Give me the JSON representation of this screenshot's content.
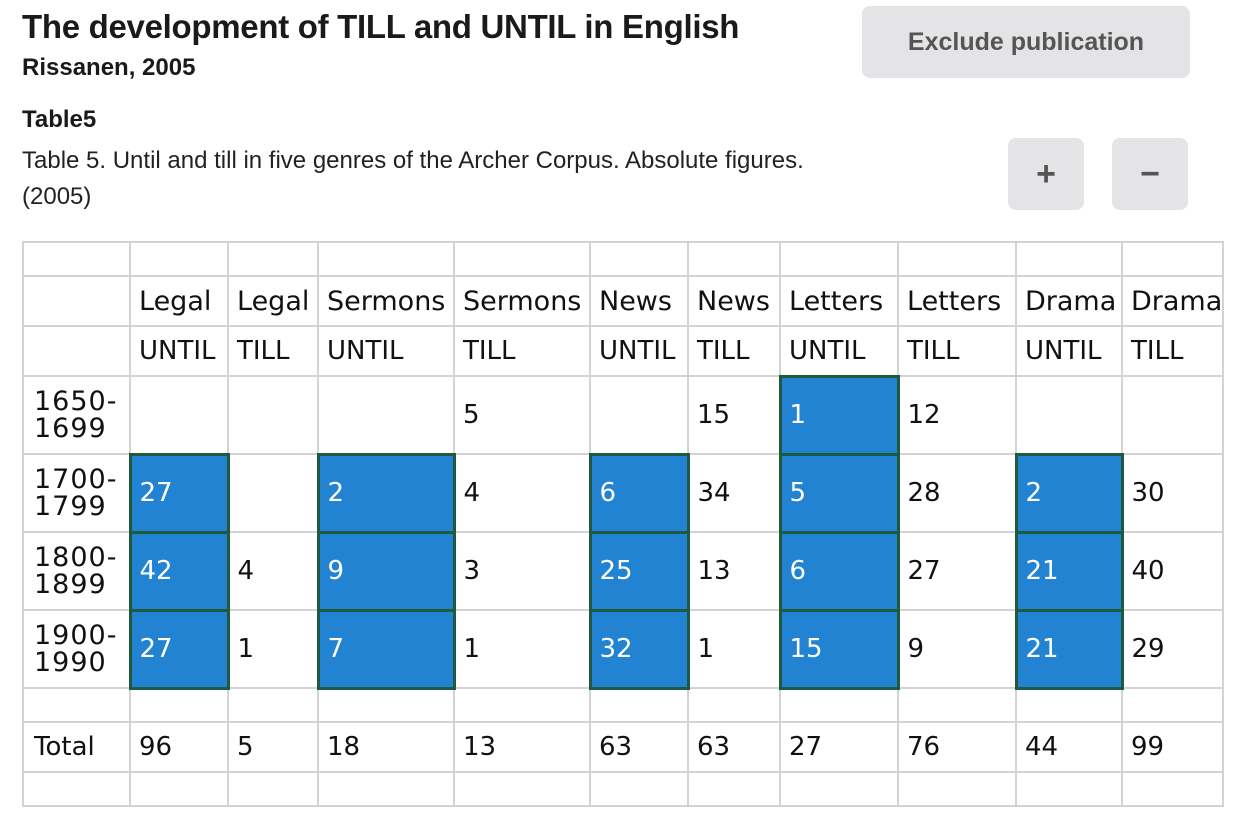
{
  "page": {
    "title": "The development of TILL and UNTIL in English",
    "subtitle": "Rissanen, 2005",
    "exclude_button": "Exclude publication",
    "table_heading": "Table5",
    "caption_line1": "Table 5. Until and till in five genres of the Archer Corpus. Absolute figures.",
    "caption_line2": "(2005)",
    "zoom_in": "+",
    "zoom_out": "−"
  },
  "table": {
    "genres": [
      "Legal",
      "Legal",
      "Sermons",
      "Sermons",
      "News",
      "News",
      "Letters",
      "Letters",
      "Drama",
      "Drama"
    ],
    "forms": [
      "UNTIL",
      "TILL",
      "UNTIL",
      "TILL",
      "UNTIL",
      "TILL",
      "UNTIL",
      "TILL",
      "UNTIL",
      "TILL"
    ],
    "rows": [
      {
        "period_a": "1650-",
        "period_b": "1699",
        "cells": [
          "",
          "",
          "",
          "5",
          "",
          "15",
          "1",
          "12",
          "",
          ""
        ]
      },
      {
        "period_a": "1700-",
        "period_b": "1799",
        "cells": [
          "27",
          "",
          "2",
          "4",
          "6",
          "34",
          "5",
          "28",
          "2",
          "30"
        ]
      },
      {
        "period_a": "1800-",
        "period_b": "1899",
        "cells": [
          "42",
          "4",
          "9",
          "3",
          "25",
          "13",
          "6",
          "27",
          "21",
          "40"
        ]
      },
      {
        "period_a": "1900-",
        "period_b": "1990",
        "cells": [
          "27",
          "1",
          "7",
          "1",
          "32",
          "1",
          "15",
          "9",
          "21",
          "29"
        ]
      }
    ],
    "total_label": "Total",
    "totals": [
      "96",
      "5",
      "18",
      "13",
      "63",
      "63",
      "27",
      "76",
      "44",
      "99"
    ],
    "highlight_color": "#2383d3",
    "highlight_border_color": "#1f5a3e"
  }
}
